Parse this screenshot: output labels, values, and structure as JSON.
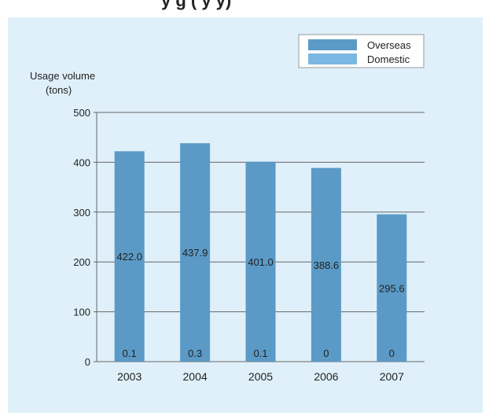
{
  "page_title_fragment": "y           g        (     y  y)",
  "colors": {
    "background": "#dff0fa",
    "overseas": "#5b9ac6",
    "domestic": "#7ab8e3",
    "gridline": "#666666",
    "text": "#222222"
  },
  "chart_data": {
    "type": "bar",
    "stacked": true,
    "categories": [
      "2003",
      "2004",
      "2005",
      "2006",
      "2007"
    ],
    "series": [
      {
        "name": "Overseas",
        "values": [
          422.0,
          437.9,
          401.0,
          388.6,
          295.6
        ],
        "labels": [
          "422.0",
          "437.9",
          "401.0",
          "388.6",
          "295.6"
        ]
      },
      {
        "name": "Domestic",
        "values": [
          0.1,
          0.3,
          0.1,
          0,
          0
        ],
        "labels": [
          "0.1",
          "0.3",
          "0.1",
          "0",
          "0"
        ]
      }
    ],
    "ylabel_line1": "Usage volume",
    "ylabel_line2": "(tons)",
    "ylim": [
      0,
      500
    ],
    "yticks": [
      "0",
      "100",
      "200",
      "300",
      "400",
      "500"
    ],
    "grid": true,
    "legend_position": "top-right"
  }
}
